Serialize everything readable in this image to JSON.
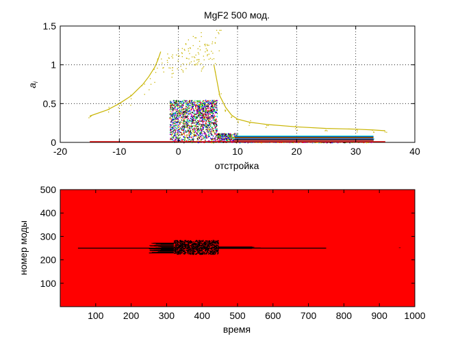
{
  "chart_data": [
    {
      "type": "scatter",
      "title": "MgF2 500 мод.",
      "xlabel": "отстройка",
      "ylabel": "a_i",
      "xlim": [
        -20,
        40
      ],
      "ylim": [
        0,
        1.5
      ],
      "xticks": [
        "-20",
        "-10",
        "0",
        "10",
        "20",
        "30",
        "40"
      ],
      "yticks": [
        "0",
        "0.5",
        "1",
        "1.5"
      ],
      "grid": true,
      "colors": {
        "envelope": "#c8b400",
        "baseline": "#cc0000",
        "cluster": [
          "#ff0000",
          "#00aa00",
          "#0000ff",
          "#00cccc",
          "#cc00cc",
          "#cccc00",
          "#000000"
        ]
      },
      "series": [
        {
          "x": [
            -15,
            -12,
            -10,
            -8,
            -6,
            -5,
            -4,
            -3.5,
            -3
          ],
          "y": [
            0.34,
            0.42,
            0.5,
            0.6,
            0.75,
            0.85,
            0.97,
            1.06,
            1.17
          ]
        },
        {
          "x": [
            -1.5,
            0,
            1,
            2,
            3,
            4,
            5,
            6
          ],
          "y": [
            1.05,
            1.1,
            1.18,
            1.25,
            1.15,
            1.2,
            1.3,
            1.4
          ]
        },
        {
          "x": [
            6,
            7,
            8,
            9,
            10,
            12,
            15,
            20,
            25,
            30,
            33,
            35
          ],
          "y": [
            1.0,
            0.6,
            0.45,
            0.35,
            0.3,
            0.26,
            0.23,
            0.2,
            0.18,
            0.17,
            0.16,
            0.15
          ]
        },
        {
          "x": [
            -15,
            35
          ],
          "y": [
            0.0,
            0.0
          ]
        }
      ],
      "cluster_regions": [
        {
          "x": [
            -1.5,
            6.5
          ],
          "y": [
            0,
            0.55
          ]
        },
        {
          "x": [
            6.5,
            10
          ],
          "y": [
            0,
            0.12
          ]
        },
        {
          "x": [
            10,
            33
          ],
          "y": [
            0,
            0.08
          ]
        }
      ]
    },
    {
      "type": "heatmap",
      "xlabel": "время",
      "ylabel": "номер моды",
      "xlim": [
        0,
        1000
      ],
      "ylim": [
        0,
        500
      ],
      "xticks": [
        "100",
        "200",
        "300",
        "400",
        "500",
        "600",
        "700",
        "800",
        "900",
        "1000"
      ],
      "yticks": [
        "100",
        "200",
        "300",
        "400",
        "500"
      ],
      "background_color": "#ff0000",
      "mark_color": "#000000",
      "features": [
        {
          "kind": "line",
          "x": [
            50,
            750
          ],
          "y": 250
        },
        {
          "kind": "blob",
          "x": [
            320,
            445
          ],
          "y": [
            225,
            285
          ]
        },
        {
          "kind": "streak",
          "x": [
            250,
            320
          ],
          "y": [
            228,
            272
          ]
        },
        {
          "kind": "tail",
          "x": [
            445,
            580
          ],
          "y": [
            248,
            256
          ]
        }
      ]
    }
  ]
}
